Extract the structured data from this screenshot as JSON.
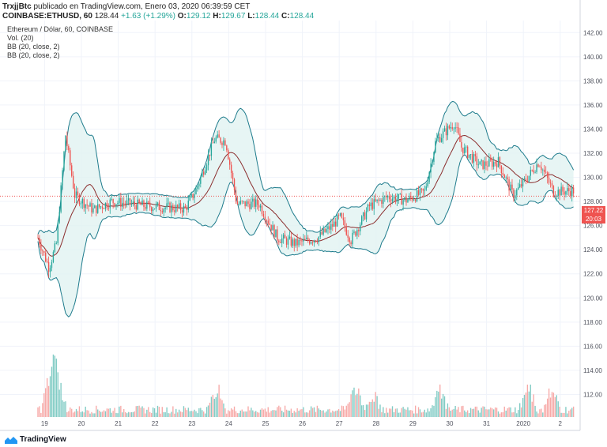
{
  "header": {
    "author": "TrxjjBtc",
    "published": " publicado en TradingView.com, Enero 03, 2020 06:39:59 CET"
  },
  "ohlc": {
    "symbol": "COINBASE:ETHUSD, 60",
    "last": "128.44",
    "change": "+1.63 (+1.29%)",
    "o_label": "O:",
    "o": "129.12",
    "h_label": "H:",
    "h": "129.67",
    "l_label": "L:",
    "l": "128.44",
    "c_label": "C:",
    "c": "128.44"
  },
  "legend": {
    "title": "Ethereum / Dólar, 60, COINBASE",
    "vol": "Vol. (20)",
    "bb1": "BB (20, close, 2)",
    "bb2": "BB (20, close, 2)"
  },
  "price_tags": {
    "last_price": "127.22",
    "countdown": "20:03"
  },
  "footer": {
    "brand": "TradingView"
  },
  "colors": {
    "up": "#26a69a",
    "down": "#ef5350",
    "band": "#1e7b8c",
    "band_fill": "#e1f3f1",
    "basis": "#8b2e2e",
    "grid": "#f0f3fa",
    "axis_text": "#50535e"
  },
  "chart_data": {
    "type": "candlestick",
    "title": "Ethereum / Dólar, 60, COINBASE",
    "xlabel": "",
    "ylabel": "",
    "ylim": [
      110,
      143
    ],
    "y_ticks": [
      "142.00",
      "140.00",
      "138.00",
      "136.00",
      "134.00",
      "132.00",
      "130.00",
      "128.00",
      "126.00",
      "124.00",
      "122.00",
      "120.00",
      "118.00",
      "116.00",
      "114.00",
      "112.00"
    ],
    "x_ticks": [
      "19",
      "20",
      "21",
      "22",
      "23",
      "24",
      "25",
      "26",
      "27",
      "28",
      "29",
      "30",
      "31",
      "2020",
      "2"
    ],
    "last_price": 127.22,
    "price_line": 128.44,
    "price_anchors": [
      {
        "day": 0.0,
        "price": 125.0
      },
      {
        "day": 0.3,
        "price": 122.5
      },
      {
        "day": 0.5,
        "price": 124.5
      },
      {
        "day": 0.75,
        "price": 133.5
      },
      {
        "day": 1.0,
        "price": 128.5
      },
      {
        "day": 1.5,
        "price": 127.3
      },
      {
        "day": 2.0,
        "price": 128.0
      },
      {
        "day": 2.5,
        "price": 127.8
      },
      {
        "day": 3.0,
        "price": 127.6
      },
      {
        "day": 3.5,
        "price": 127.5
      },
      {
        "day": 4.0,
        "price": 127.4
      },
      {
        "day": 4.3,
        "price": 129.0
      },
      {
        "day": 4.8,
        "price": 133.2
      },
      {
        "day": 5.1,
        "price": 133.0
      },
      {
        "day": 5.4,
        "price": 127.8
      },
      {
        "day": 6.0,
        "price": 127.8
      },
      {
        "day": 6.5,
        "price": 125.0
      },
      {
        "day": 7.0,
        "price": 124.5
      },
      {
        "day": 7.6,
        "price": 125.0
      },
      {
        "day": 8.0,
        "price": 126.0
      },
      {
        "day": 8.2,
        "price": 126.7
      },
      {
        "day": 8.5,
        "price": 124.8
      },
      {
        "day": 9.0,
        "price": 127.6
      },
      {
        "day": 9.5,
        "price": 128.4
      },
      {
        "day": 10.0,
        "price": 128.1
      },
      {
        "day": 10.5,
        "price": 128.8
      },
      {
        "day": 10.8,
        "price": 133.0
      },
      {
        "day": 11.3,
        "price": 134.5
      },
      {
        "day": 11.5,
        "price": 132.5
      },
      {
        "day": 12.0,
        "price": 131.0
      },
      {
        "day": 12.5,
        "price": 131.3
      },
      {
        "day": 12.9,
        "price": 128.5
      },
      {
        "day": 13.3,
        "price": 130.0
      },
      {
        "day": 13.6,
        "price": 131.3
      },
      {
        "day": 14.0,
        "price": 128.8
      },
      {
        "day": 14.6,
        "price": 128.9
      }
    ],
    "volume_peaks": [
      {
        "day": 0.35,
        "rel": 1.0
      },
      {
        "day": 0.55,
        "rel": 0.6
      },
      {
        "day": 4.85,
        "rel": 0.5
      },
      {
        "day": 8.6,
        "rel": 0.55
      },
      {
        "day": 10.9,
        "rel": 0.55
      },
      {
        "day": 13.3,
        "rel": 0.5
      },
      {
        "day": 13.95,
        "rel": 0.45
      },
      {
        "day": 9.1,
        "rel": 0.35
      }
    ]
  }
}
